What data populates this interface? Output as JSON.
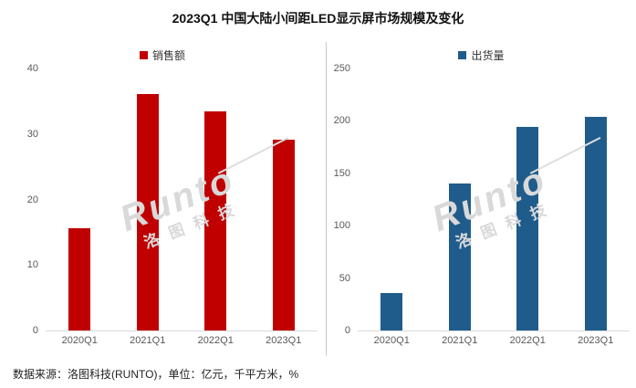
{
  "title": "2023Q1 中国大陆小间距LED显示屏市场规模及变化",
  "footer": "数据来源：洛图科技(RUNTO)，单位：亿元，千平方米，%",
  "watermark": {
    "brand": "Runto",
    "cn": "洛图科技"
  },
  "colors": {
    "sales_red": "#c00000",
    "shipment_blue": "#1f5c8b",
    "axis_text": "#595959",
    "axis_line": "#d9d9d9",
    "divider": "#c9c9c9",
    "watermark": "#d9d9d9"
  },
  "chart_data": [
    {
      "type": "bar",
      "name": "销售额",
      "unit": "亿元",
      "categories": [
        "2020Q1",
        "2021Q1",
        "2022Q1",
        "2023Q1"
      ],
      "values": [
        15.6,
        36.1,
        33.4,
        29.1
      ],
      "ylim": [
        0,
        40
      ],
      "yticks": [
        0,
        10,
        20,
        30,
        40
      ],
      "bar_color": "#c00000",
      "grid": false,
      "legend_position": "top"
    },
    {
      "type": "bar",
      "name": "出货量",
      "unit": "千平方米",
      "categories": [
        "2020Q1",
        "2021Q1",
        "2022Q1",
        "2023Q1"
      ],
      "values": [
        36,
        140,
        194,
        204
      ],
      "ylim": [
        0,
        250
      ],
      "yticks": [
        0,
        50,
        100,
        150,
        200,
        250
      ],
      "bar_color": "#1f5c8b",
      "grid": false,
      "legend_position": "top"
    }
  ]
}
